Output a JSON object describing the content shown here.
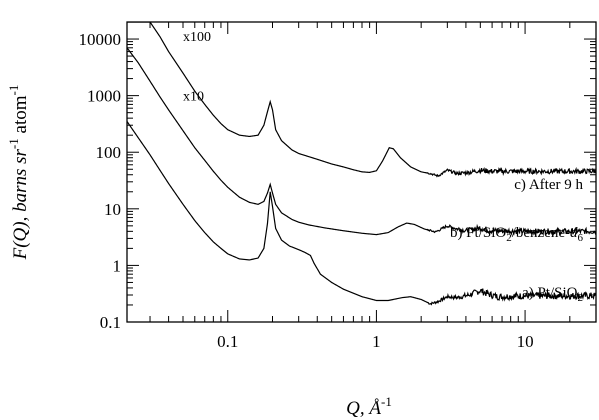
{
  "chart_data": {
    "type": "line",
    "xscale": "log",
    "yscale": "log",
    "xlim": [
      0.021,
      30
    ],
    "ylim": [
      0.1,
      20000
    ],
    "grid": false,
    "legend": "none",
    "xlabel": {
      "main": "Q, Å",
      "sup": "-1"
    },
    "ylabel": {
      "prefix": "F(Q), barns sr",
      "sup1": "-1",
      "mid": " atom",
      "sup2": "-1"
    },
    "x_tick_labels": [
      {
        "value": 0.1,
        "label": "0.1"
      },
      {
        "value": 1,
        "label": "1"
      },
      {
        "value": 10,
        "label": "10"
      }
    ],
    "y_tick_labels": [
      {
        "value": 0.1,
        "label": "0.1"
      },
      {
        "value": 1,
        "label": "1"
      },
      {
        "value": 10,
        "label": "10"
      },
      {
        "value": 100,
        "label": "100"
      },
      {
        "value": 1000,
        "label": "1000"
      },
      {
        "value": 10000,
        "label": "10000"
      }
    ],
    "multipliers": [
      {
        "text": "x100",
        "x": 0.05,
        "y": 9200
      },
      {
        "text": "x10",
        "x": 0.05,
        "y": 820
      }
    ],
    "annotations": [
      {
        "key": "c",
        "text": "c) After 9 h"
      },
      {
        "key": "b",
        "parts": [
          "b) Pt/SiO",
          "2",
          "/benzene-",
          "d",
          "6"
        ]
      },
      {
        "key": "a",
        "parts": [
          "a) Pt/SiO",
          "2"
        ]
      }
    ],
    "series": [
      {
        "key": "a",
        "color": "#000000",
        "noise": 0.06,
        "points": [
          [
            0.021,
            350
          ],
          [
            0.025,
            180
          ],
          [
            0.03,
            90
          ],
          [
            0.035,
            48
          ],
          [
            0.04,
            28
          ],
          [
            0.05,
            12
          ],
          [
            0.06,
            6.2
          ],
          [
            0.07,
            3.8
          ],
          [
            0.08,
            2.6
          ],
          [
            0.09,
            2.0
          ],
          [
            0.1,
            1.6
          ],
          [
            0.12,
            1.3
          ],
          [
            0.14,
            1.25
          ],
          [
            0.16,
            1.35
          ],
          [
            0.175,
            2.0
          ],
          [
            0.185,
            5.5
          ],
          [
            0.193,
            20
          ],
          [
            0.2,
            11
          ],
          [
            0.21,
            4.5
          ],
          [
            0.23,
            2.8
          ],
          [
            0.26,
            2.2
          ],
          [
            0.3,
            1.9
          ],
          [
            0.33,
            1.7
          ],
          [
            0.36,
            1.5
          ],
          [
            0.38,
            1.1
          ],
          [
            0.42,
            0.7
          ],
          [
            0.5,
            0.5
          ],
          [
            0.6,
            0.38
          ],
          [
            0.8,
            0.28
          ],
          [
            1.0,
            0.24
          ],
          [
            1.2,
            0.24
          ],
          [
            1.5,
            0.27
          ],
          [
            1.7,
            0.28
          ],
          [
            2.0,
            0.25
          ],
          [
            2.3,
            0.21
          ],
          [
            2.6,
            0.23
          ],
          [
            3.0,
            0.28
          ],
          [
            3.5,
            0.27
          ],
          [
            4.2,
            0.3
          ],
          [
            5.0,
            0.36
          ],
          [
            5.5,
            0.32
          ],
          [
            6.5,
            0.28
          ],
          [
            10,
            0.29
          ],
          [
            20,
            0.29
          ],
          [
            30,
            0.29
          ]
        ]
      },
      {
        "key": "b",
        "color": "#000000",
        "noise": 0.05,
        "points": [
          [
            0.021,
            7000
          ],
          [
            0.025,
            3800
          ],
          [
            0.03,
            1800
          ],
          [
            0.035,
            950
          ],
          [
            0.04,
            560
          ],
          [
            0.05,
            240
          ],
          [
            0.06,
            120
          ],
          [
            0.07,
            72
          ],
          [
            0.08,
            46
          ],
          [
            0.09,
            32
          ],
          [
            0.1,
            24
          ],
          [
            0.12,
            16
          ],
          [
            0.14,
            13
          ],
          [
            0.16,
            12
          ],
          [
            0.175,
            13.5
          ],
          [
            0.185,
            19
          ],
          [
            0.193,
            27
          ],
          [
            0.2,
            19
          ],
          [
            0.21,
            12
          ],
          [
            0.23,
            8.5
          ],
          [
            0.27,
            6.5
          ],
          [
            0.3,
            5.8
          ],
          [
            0.35,
            5.2
          ],
          [
            0.45,
            4.6
          ],
          [
            0.6,
            4.1
          ],
          [
            0.8,
            3.7
          ],
          [
            1.0,
            3.5
          ],
          [
            1.2,
            3.8
          ],
          [
            1.4,
            4.8
          ],
          [
            1.6,
            5.6
          ],
          [
            1.8,
            5.3
          ],
          [
            2.1,
            4.4
          ],
          [
            2.5,
            3.9
          ],
          [
            3.0,
            5.0
          ],
          [
            3.5,
            4.4
          ],
          [
            4.0,
            4.1
          ],
          [
            5.0,
            4.6
          ],
          [
            6.0,
            4.1
          ],
          [
            10,
            4.0
          ],
          [
            20,
            4.0
          ],
          [
            30,
            4.0
          ]
        ]
      },
      {
        "key": "c",
        "color": "#000000",
        "noise": 0.045,
        "points": [
          [
            0.021,
            20000
          ],
          [
            0.03,
            20000
          ],
          [
            0.035,
            11000
          ],
          [
            0.04,
            6000
          ],
          [
            0.05,
            2500
          ],
          [
            0.06,
            1200
          ],
          [
            0.07,
            700
          ],
          [
            0.08,
            450
          ],
          [
            0.09,
            320
          ],
          [
            0.1,
            250
          ],
          [
            0.12,
            200
          ],
          [
            0.14,
            190
          ],
          [
            0.16,
            200
          ],
          [
            0.175,
            300
          ],
          [
            0.185,
            520
          ],
          [
            0.193,
            780
          ],
          [
            0.2,
            560
          ],
          [
            0.21,
            250
          ],
          [
            0.23,
            160
          ],
          [
            0.27,
            110
          ],
          [
            0.3,
            95
          ],
          [
            0.4,
            75
          ],
          [
            0.5,
            62
          ],
          [
            0.6,
            55
          ],
          [
            0.7,
            49
          ],
          [
            0.8,
            45
          ],
          [
            0.9,
            44
          ],
          [
            1.0,
            47
          ],
          [
            1.1,
            70
          ],
          [
            1.22,
            120
          ],
          [
            1.3,
            115
          ],
          [
            1.45,
            80
          ],
          [
            1.7,
            55
          ],
          [
            2.0,
            45
          ],
          [
            2.3,
            42
          ],
          [
            2.6,
            38
          ],
          [
            3.0,
            48
          ],
          [
            3.5,
            42
          ],
          [
            4.2,
            44
          ],
          [
            5.0,
            48
          ],
          [
            6.0,
            46
          ],
          [
            10,
            46
          ],
          [
            20,
            46
          ],
          [
            30,
            46
          ]
        ]
      }
    ]
  }
}
